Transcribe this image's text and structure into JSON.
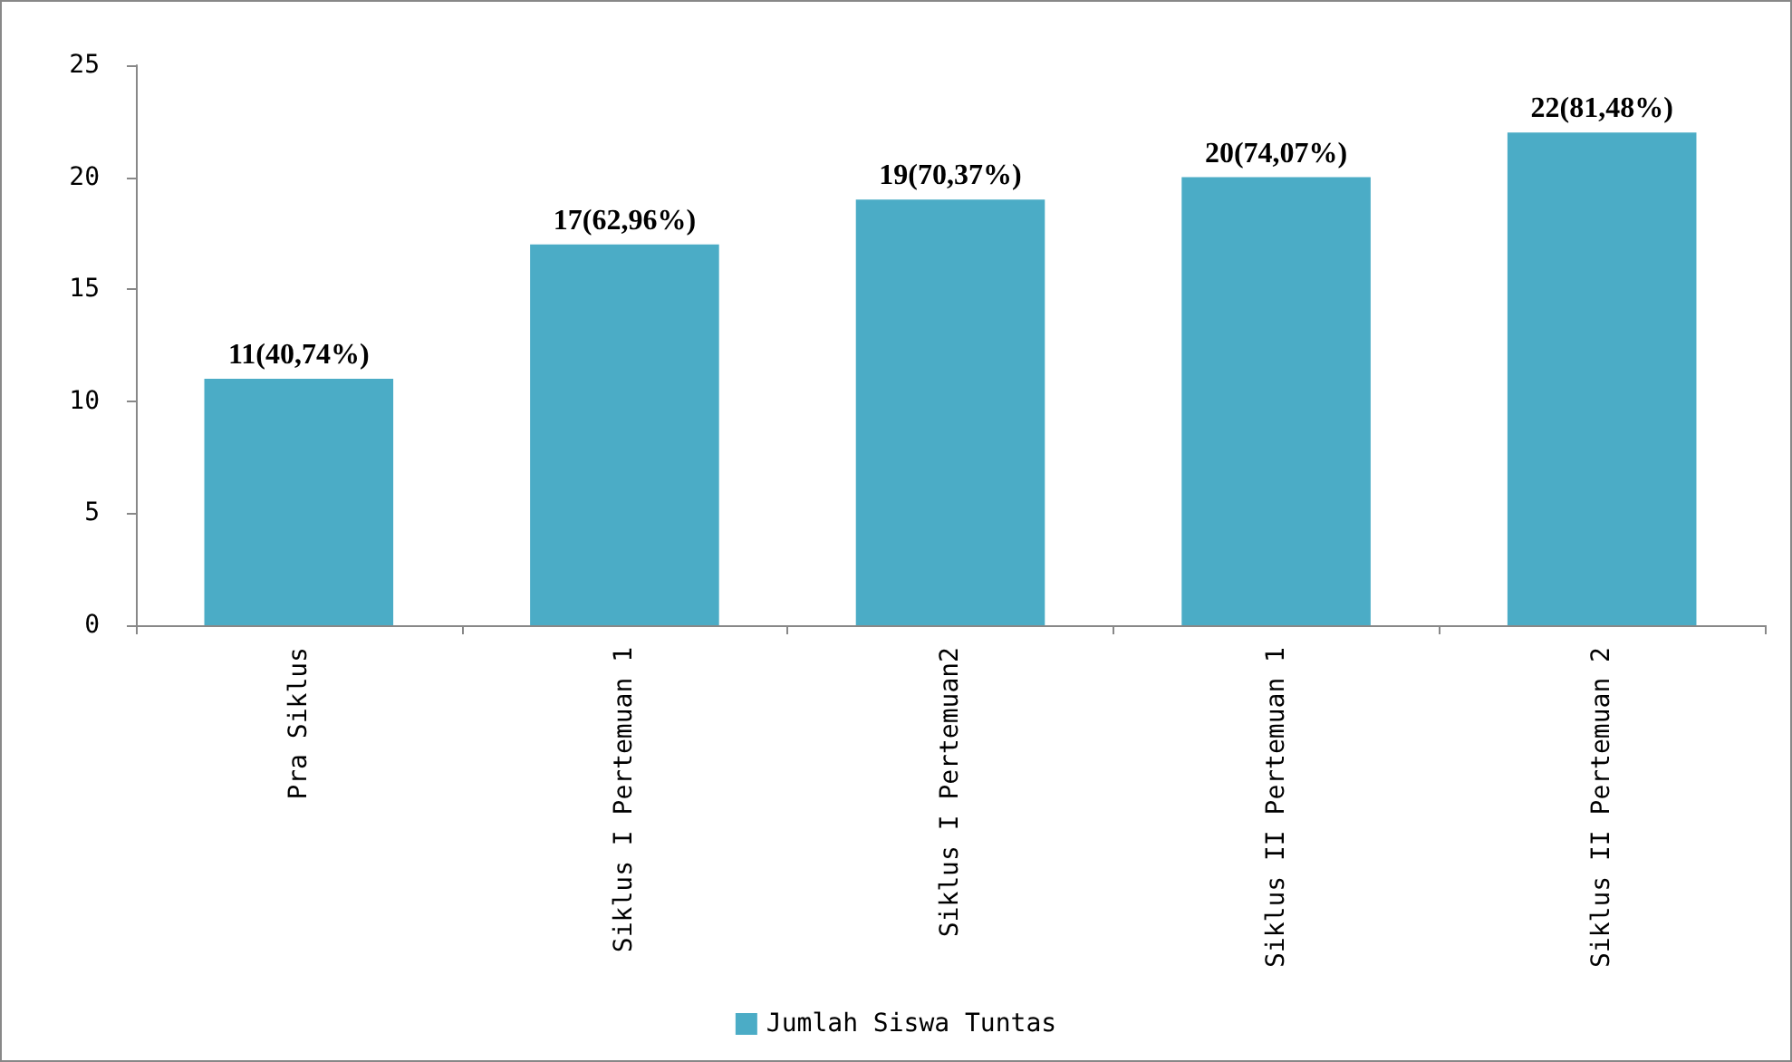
{
  "chart_data": {
    "type": "bar",
    "categories": [
      "Pra Siklus",
      "Siklus I Pertemuan 1",
      "Siklus I Pertemuan2",
      "Siklus II Pertemuan 1",
      "Siklus II Pertemuan 2"
    ],
    "series": [
      {
        "name": "Jumlah Siswa Tuntas",
        "color": "#4bacc6",
        "values": [
          11,
          17,
          19,
          20,
          22
        ],
        "value_labels": [
          "11(40,74%)",
          "17(62,96%)",
          "19(70,37%)",
          "20(74,07%)",
          "22(81,48%)"
        ]
      }
    ],
    "ylim": [
      0,
      25
    ],
    "yticks": [
      0,
      5,
      10,
      15,
      20,
      25
    ],
    "grid": false,
    "legend": "bottom"
  }
}
